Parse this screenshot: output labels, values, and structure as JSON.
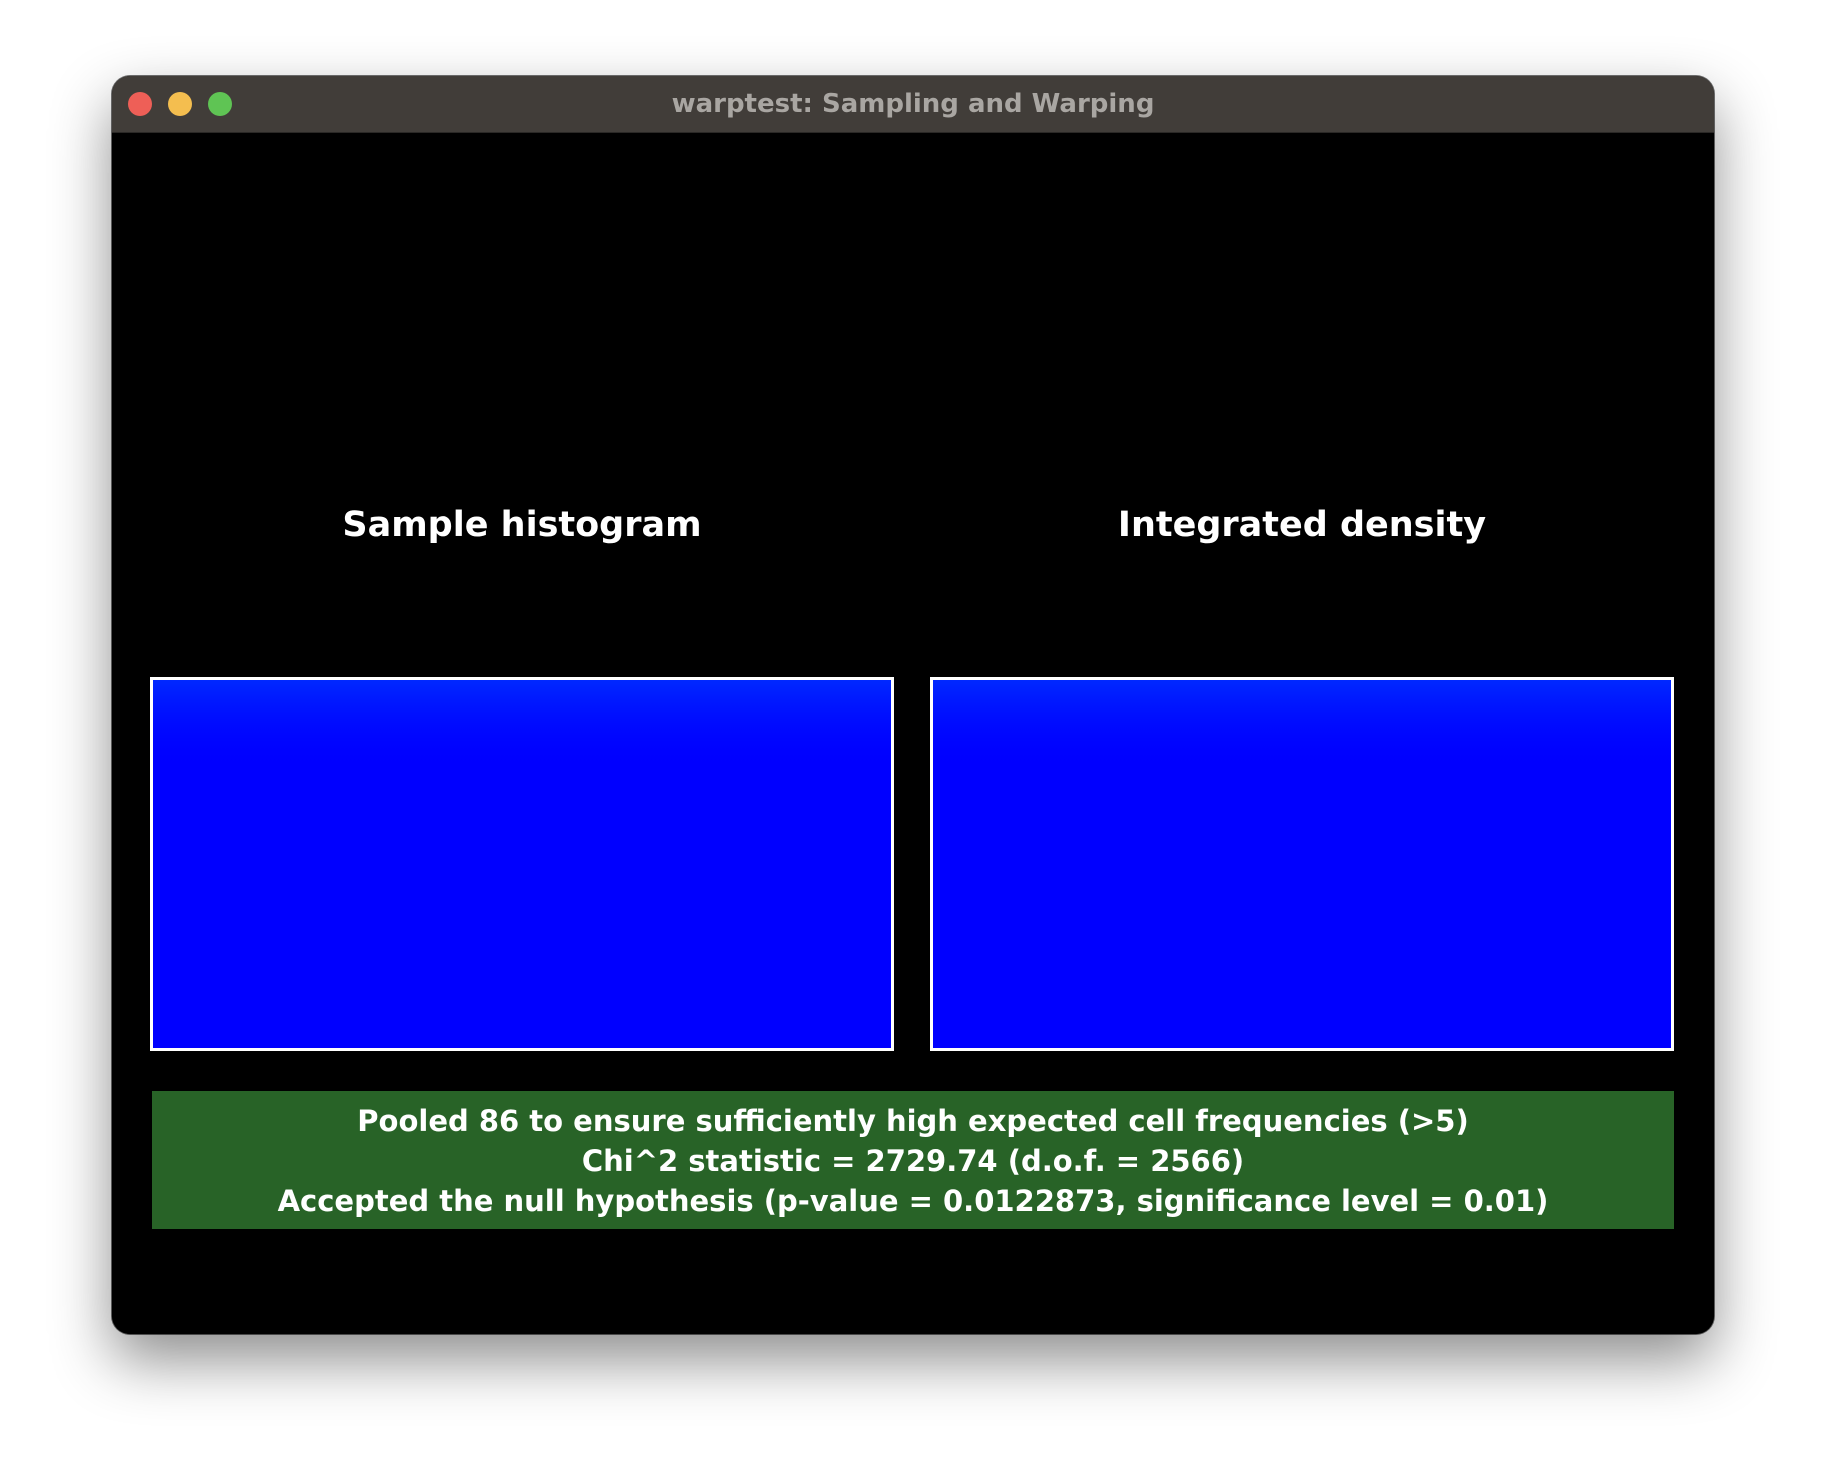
{
  "window": {
    "title": "warptest: Sampling and Warping"
  },
  "panels": {
    "left_title": "Sample histogram",
    "right_title": "Integrated density"
  },
  "status": {
    "line1": "Pooled 86 to ensure sufficiently high expected cell frequencies (>5)",
    "line2": "Chi^2 statistic = 2729.74 (d.o.f. = 2566)",
    "line3": "Accepted the null hypothesis (p-value = 0.0122873, significance level = 0.01)",
    "background_color": "#286327"
  },
  "colors": {
    "plot_base": "#0000ff",
    "plot_hot": "#ff0000",
    "plot_mid": "#00ff00",
    "plot_cool": "#00ffff"
  }
}
